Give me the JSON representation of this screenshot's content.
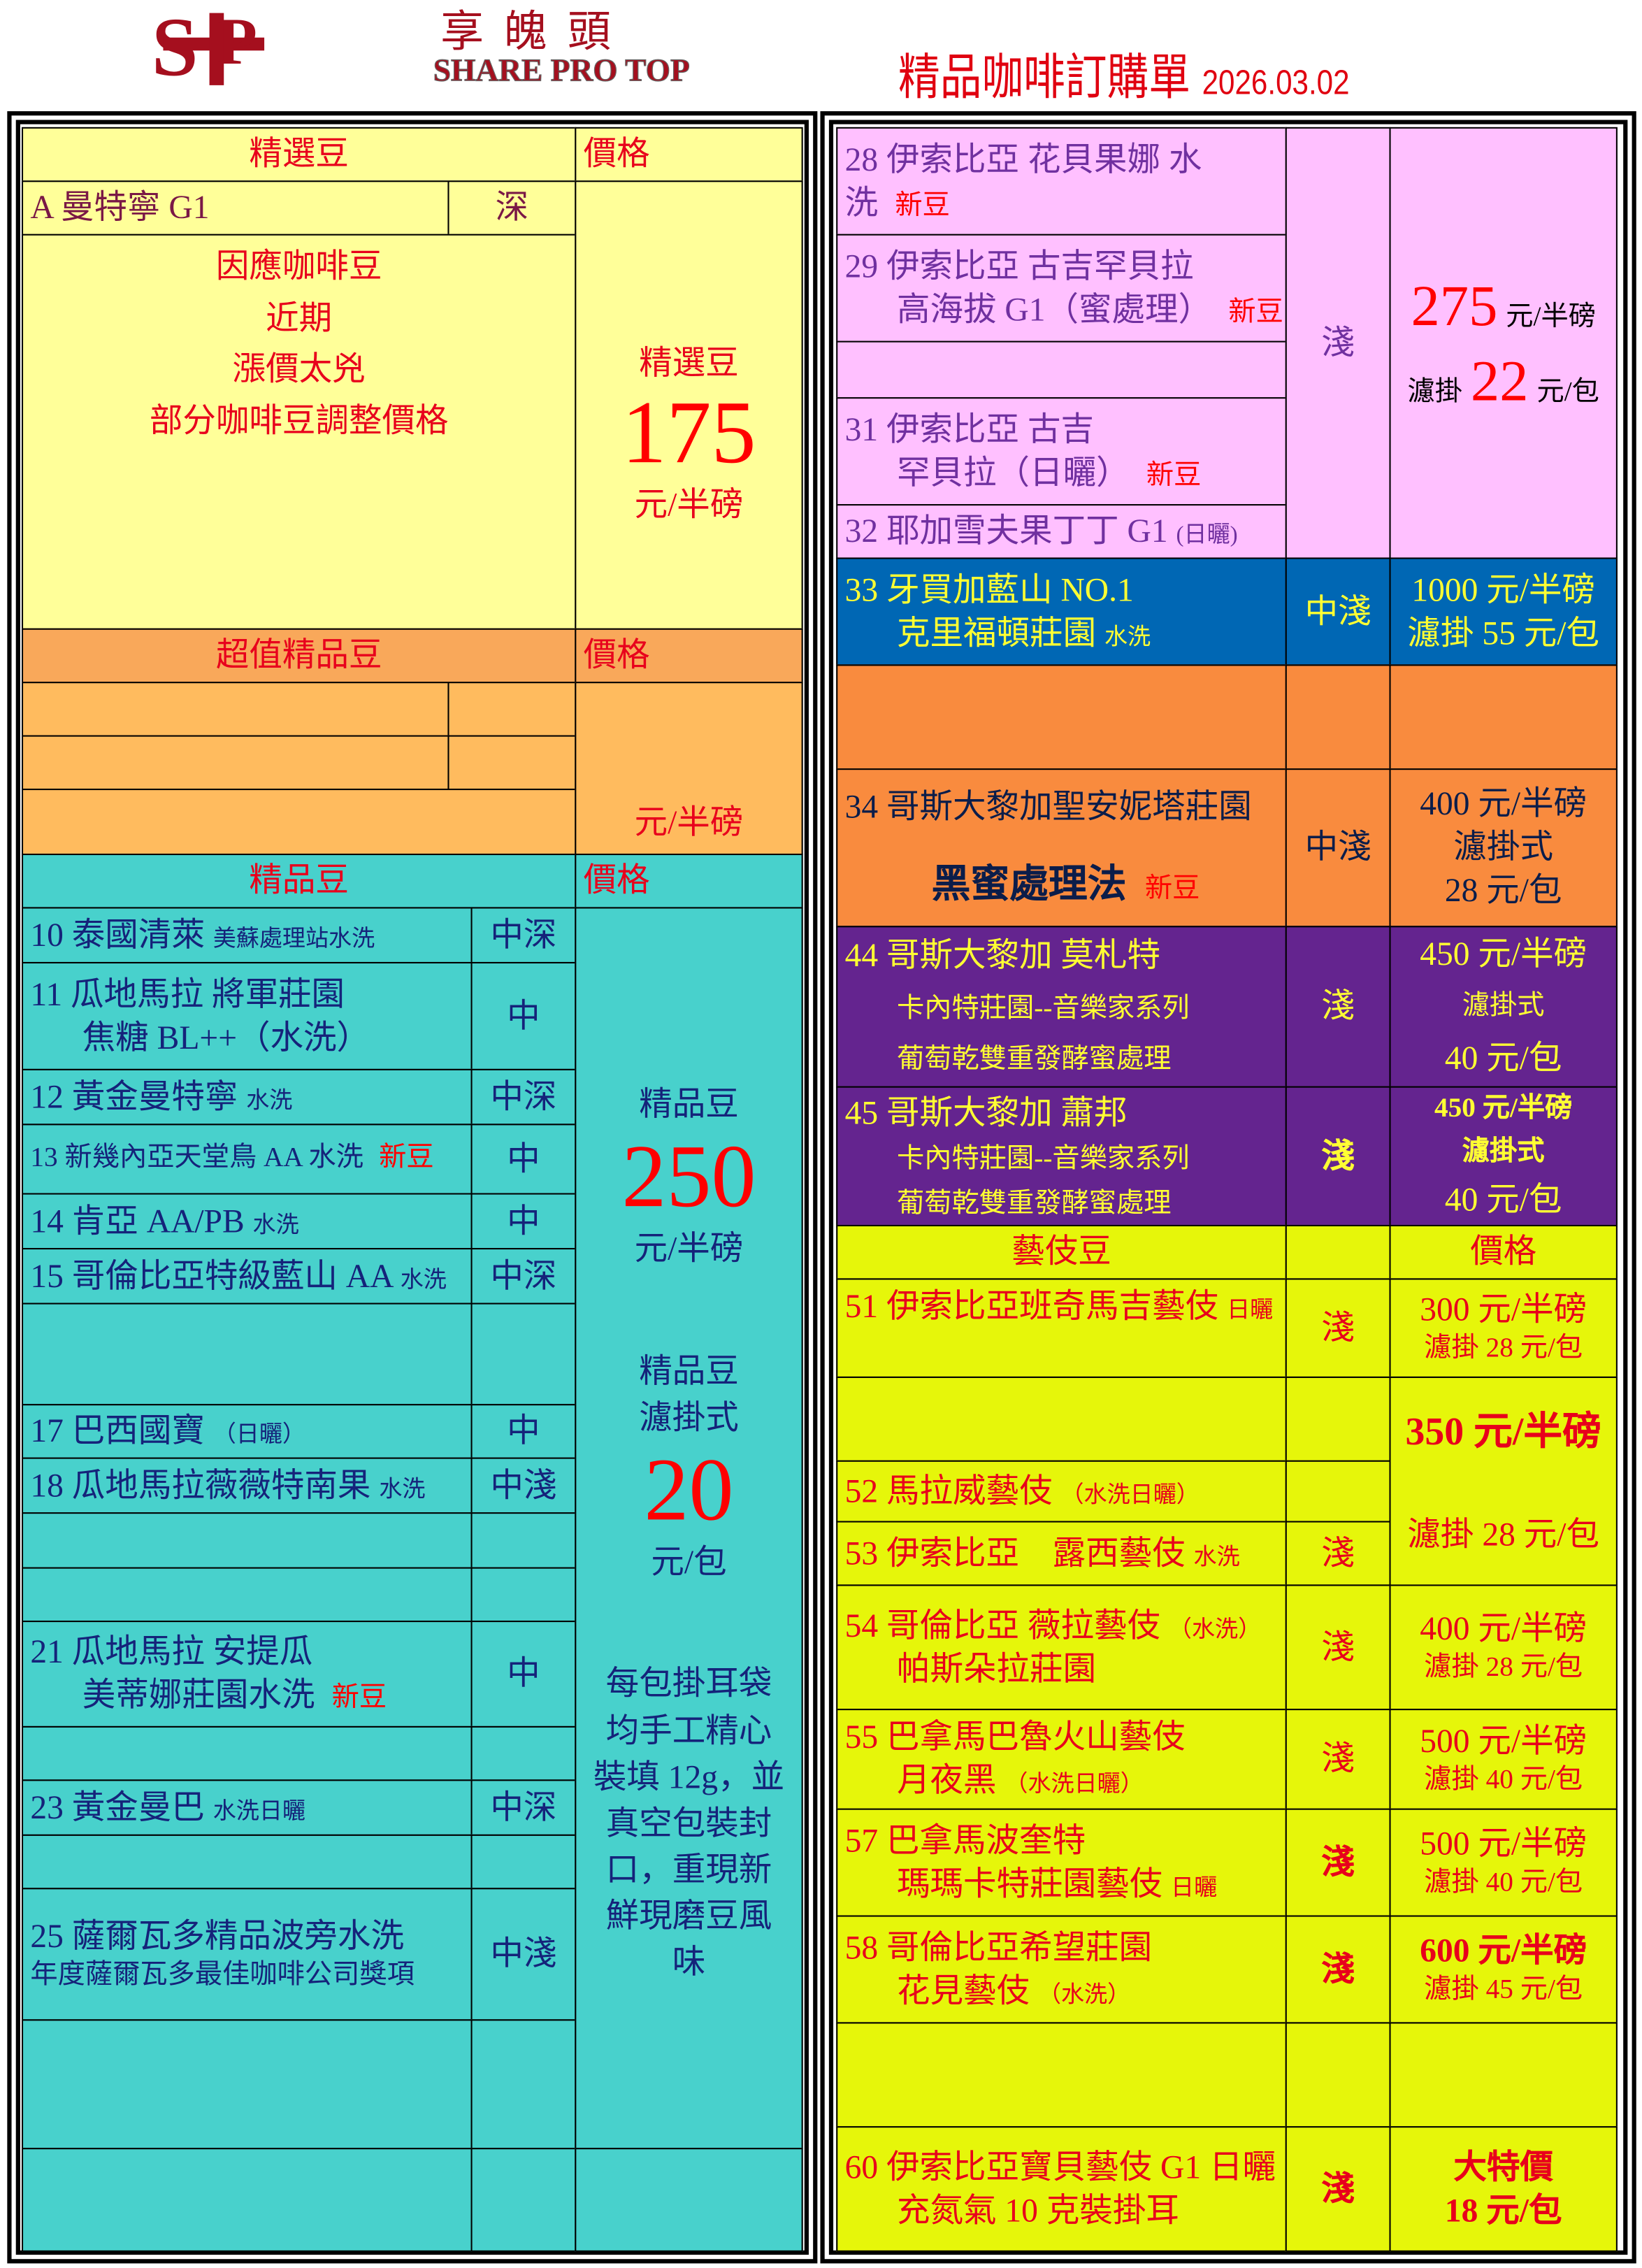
{
  "header": {
    "brand_cn": "享魄頭",
    "brand_en": "SHARE PRO TOP",
    "title": "精品咖啡訂購單",
    "date": "2026.03.02"
  },
  "colors": {
    "select_bg": "#ffff99",
    "value_bg": "#ffbb5e",
    "value_header_bg": "#f9a85a",
    "premium_bg": "#48d1cc",
    "pink_bg": "#ffc0ff",
    "blue_bg": "#0067b4",
    "orange_bg": "#f98b3e",
    "purple_bg": "#64248f",
    "geisha_bg": "#e6f60a",
    "accent_red": "#ff0000",
    "brand": "#a50f1e"
  },
  "left": {
    "select": {
      "header": "精選豆",
      "price_header": "價格",
      "item": {
        "name": "A 曼特寧 G1",
        "roast": "深"
      },
      "notice": [
        "因應咖啡豆",
        "近期",
        "漲價太兇",
        "部分咖啡豆調整價格"
      ],
      "price": {
        "label": "精選豆",
        "value": "175",
        "unit": "元/半磅"
      }
    },
    "value": {
      "header": "超值精品豆",
      "price_header": "價格",
      "price_unit": "元/半磅"
    },
    "premium": {
      "header": "精品豆",
      "price_header": "價格",
      "items": [
        {
          "l1": "10 泰國清萊",
          "s1": "美蘇處理站水洗",
          "roast": "中深"
        },
        {
          "l1": "11  瓜地馬拉 將軍莊園",
          "l2": "焦糖 BL++（水洗）",
          "roast": "中"
        },
        {
          "l1": "12 黃金曼特寧",
          "s1": "水洗",
          "roast": "中深"
        },
        {
          "l1": "13 新幾內亞天堂鳥 AA 水洗",
          "tag": "新豆",
          "roast": "中"
        },
        {
          "l1": "14 肯亞 AA/PB",
          "s1": "水洗",
          "roast": "中"
        },
        {
          "l1": "15 哥倫比亞特級藍山 AA",
          "s1": "水洗",
          "roast": "中深"
        },
        {
          "l1": "17 巴西國寶",
          "s1": "（日曬）",
          "roast": "中"
        },
        {
          "l1": "18 瓜地馬拉薇薇特南果",
          "s1": "水洗",
          "roast": "中淺"
        },
        {
          "l1": "21 瓜地馬拉 安提瓜",
          "l2": "美蒂娜莊園水洗",
          "tag": "新豆",
          "roast": "中"
        },
        {
          "l1": "23 黃金曼巴",
          "s1": "水洗日曬",
          "roast": "中深"
        },
        {
          "l1": "25 薩爾瓦多精品波旁水洗",
          "l2": "年度薩爾瓦多最佳咖啡公司獎項",
          "roast": "中淺"
        }
      ],
      "price": {
        "label": "精品豆",
        "value": "250",
        "unit": "元/半磅",
        "drip_label": "精品豆",
        "drip_type": "濾掛式",
        "drip_value": "20",
        "drip_unit": "元/包",
        "desc": [
          "每包掛耳袋",
          "均手工精心",
          "裝填 12g，並",
          "真空包裝封",
          "口，重現新",
          "鮮現磨豆風",
          "味"
        ]
      }
    }
  },
  "right": {
    "pink": {
      "items": [
        {
          "l1": "28 伊索比亞  花貝果娜  水",
          "l2": "洗",
          "tag": "新豆"
        },
        {
          "l1": "29 伊索比亞  古吉罕貝拉",
          "l2": "高海拔 G1（蜜處理）",
          "tag": "新豆"
        },
        {
          "l1": "31 伊索比亞  古吉",
          "l2": "罕貝拉（日曬）",
          "tag": "新豆"
        },
        {
          "l1": "32 耶加雪夫果丁丁 G1",
          "s1": "(日曬)"
        }
      ],
      "roast": "淺",
      "price": {
        "value": "275",
        "unit": "元/半磅",
        "drip_label": "濾掛",
        "drip_value": "22",
        "drip_unit": "元/包"
      }
    },
    "blue": {
      "l1": "33 牙買加藍山 NO.1",
      "l2": "克里福頓莊園",
      "s2": "水洗",
      "roast": "中淺",
      "price": [
        "1000 元/半磅",
        "濾掛 55 元/包"
      ]
    },
    "orange": {
      "l1": "34  哥斯大黎加聖安妮塔莊園",
      "l2": "黑蜜處理法",
      "tag": "新豆",
      "roast": "中淺",
      "price": [
        "400 元/半磅",
        "濾掛式",
        "28 元/包"
      ]
    },
    "purple": [
      {
        "l1": "44 哥斯大黎加  莫札特",
        "l2": "卡內特莊園--音樂家系列",
        "l3": "葡萄乾雙重發酵蜜處理",
        "roast": "淺",
        "price": [
          "450 元/半磅",
          "濾掛式",
          "40 元/包"
        ]
      },
      {
        "l1": "45 哥斯大黎加  蕭邦",
        "l2": "卡內特莊園--音樂家系列",
        "l3": "葡萄乾雙重發酵蜜處理",
        "roast": "淺",
        "price": [
          "450 元/半磅",
          "濾掛式",
          "40 元/包"
        ]
      }
    ],
    "geisha": {
      "header": "藝伎豆",
      "price_header": "價格",
      "items": [
        {
          "l1": "51 伊索比亞班奇馬吉藝伎",
          "s1": "日曬",
          "roast": "淺",
          "price": [
            "300 元/半磅",
            "濾掛 28 元/包"
          ]
        },
        {
          "l1": "52 馬拉威藝伎",
          "s1": "（水洗日曬）"
        },
        {
          "l1": "53 伊索比亞　露西藝伎",
          "s1": "水洗",
          "roast": "淺"
        },
        {
          "l1": "54 哥倫比亞  薇拉藝伎",
          "s1": "（水洗）",
          "l2": "帕斯朵拉莊園",
          "roast": "淺",
          "price": [
            "400 元/半磅",
            "濾掛 28 元/包"
          ]
        },
        {
          "l1": "55 巴拿馬巴魯火山藝伎",
          "l2": "月夜黑",
          "s2": "（水洗日曬）",
          "roast": "淺",
          "price": [
            "500 元/半磅",
            "濾掛 40 元/包"
          ]
        },
        {
          "l1": "57 巴拿馬波奎特",
          "l2": "瑪瑪卡特莊園藝伎",
          "s2": "日曬",
          "roast": "淺",
          "price": [
            "500 元/半磅",
            "濾掛 40 元/包"
          ]
        },
        {
          "l1": "58 哥倫比亞希望莊園",
          "l2": "花見藝伎",
          "s2": "（水洗）",
          "roast": "淺",
          "price": [
            "600 元/半磅",
            "濾掛 45 元/包"
          ]
        },
        {
          "l1": "60 伊索比亞寶貝藝伎 G1 日曬",
          "l2": "充氮氣 10 克裝掛耳",
          "roast": "淺",
          "price": [
            "大特價",
            "18 元/包"
          ]
        }
      ],
      "shared_price": [
        "350 元/半磅",
        "濾掛 28 元/包"
      ]
    }
  }
}
